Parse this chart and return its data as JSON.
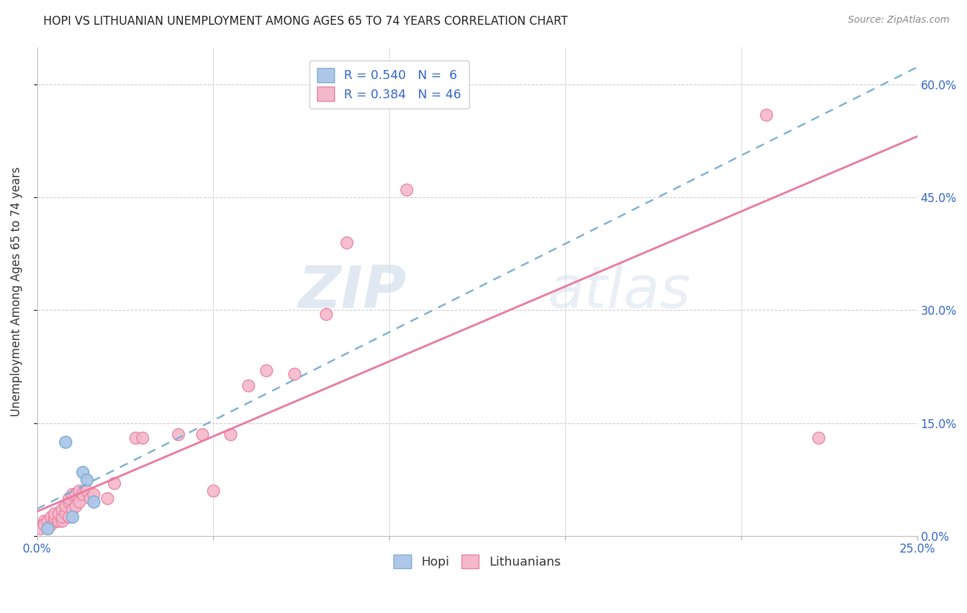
{
  "title": "HOPI VS LITHUANIAN UNEMPLOYMENT AMONG AGES 65 TO 74 YEARS CORRELATION CHART",
  "source": "Source: ZipAtlas.com",
  "ylabel": "Unemployment Among Ages 65 to 74 years",
  "xlim": [
    0.0,
    0.25
  ],
  "ylim": [
    0.0,
    0.65
  ],
  "xticks": [
    0.0,
    0.05,
    0.1,
    0.15,
    0.2,
    0.25
  ],
  "yticks": [
    0.0,
    0.15,
    0.3,
    0.45,
    0.6
  ],
  "ytick_labels_right": [
    "0.0%",
    "15.0%",
    "30.0%",
    "45.0%",
    "60.0%"
  ],
  "xtick_labels": [
    "0.0%",
    "",
    "",
    "",
    "",
    "25.0%"
  ],
  "hopi_color": "#aec6e8",
  "lithuanian_color": "#f4b8cb",
  "hopi_edge_color": "#7bafd4",
  "lithuanian_edge_color": "#e87da0",
  "hopi_line_color": "#7bafd4",
  "lithuanian_line_color": "#e87da0",
  "hopi_scatter_x": [
    0.003,
    0.008,
    0.01,
    0.013,
    0.014,
    0.016
  ],
  "hopi_scatter_y": [
    0.01,
    0.125,
    0.025,
    0.085,
    0.075,
    0.045
  ],
  "lithuanian_scatter_x": [
    0.001,
    0.002,
    0.002,
    0.003,
    0.003,
    0.004,
    0.004,
    0.005,
    0.005,
    0.005,
    0.006,
    0.006,
    0.007,
    0.007,
    0.007,
    0.008,
    0.008,
    0.009,
    0.009,
    0.009,
    0.01,
    0.01,
    0.011,
    0.011,
    0.012,
    0.012,
    0.013,
    0.014,
    0.015,
    0.016,
    0.02,
    0.022,
    0.028,
    0.03,
    0.04,
    0.047,
    0.05,
    0.055,
    0.06,
    0.065,
    0.073,
    0.082,
    0.088,
    0.105,
    0.207,
    0.222
  ],
  "lithuanian_scatter_y": [
    0.01,
    0.02,
    0.015,
    0.01,
    0.02,
    0.015,
    0.025,
    0.02,
    0.025,
    0.03,
    0.02,
    0.03,
    0.02,
    0.025,
    0.035,
    0.03,
    0.04,
    0.025,
    0.045,
    0.05,
    0.035,
    0.055,
    0.04,
    0.055,
    0.045,
    0.06,
    0.055,
    0.06,
    0.05,
    0.055,
    0.05,
    0.07,
    0.13,
    0.13,
    0.135,
    0.135,
    0.06,
    0.135,
    0.2,
    0.22,
    0.215,
    0.295,
    0.39,
    0.46,
    0.56,
    0.13
  ],
  "watermark_zip": "ZIP",
  "watermark_atlas": "atlas",
  "background_color": "#ffffff",
  "plot_bg_color": "#ffffff",
  "grid_color": "#cccccc",
  "title_fontsize": 12,
  "axis_label_fontsize": 12,
  "tick_fontsize": 12,
  "legend_fontsize": 13
}
